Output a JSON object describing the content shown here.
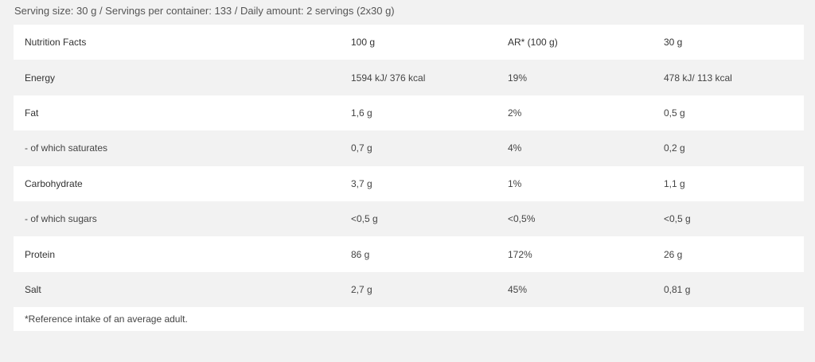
{
  "serving_info": "Serving size: 30 g / Servings per container: 133 / Daily amount: 2 servings (2x30 g)",
  "header": {
    "col1": "Nutrition Facts",
    "col2": "100 g",
    "col3": "AR* (100 g)",
    "col4": "30 g"
  },
  "rows": [
    {
      "name": "Energy",
      "per100": "1594 kJ/ 376 kcal",
      "ar": "19%",
      "per30": "478 kJ/ 113 kcal"
    },
    {
      "name": "Fat",
      "per100": "1,6 g",
      "ar": "2%",
      "per30": "0,5 g"
    },
    {
      "name": "- of which saturates",
      "per100": "0,7 g",
      "ar": "4%",
      "per30": "0,2 g"
    },
    {
      "name": "Carbohydrate",
      "per100": "3,7 g",
      "ar": "1%",
      "per30": "1,1 g"
    },
    {
      "name": "- of which sugars",
      "per100": "<0,5 g",
      "ar": "<0,5%",
      "per30": "<0,5 g"
    },
    {
      "name": "Protein",
      "per100": "86 g",
      "ar": "172%",
      "per30": "26 g"
    },
    {
      "name": "Salt",
      "per100": "2,7 g",
      "ar": "45%",
      "per30": "0,81 g"
    }
  ],
  "footnote": "*Reference intake of an average adult."
}
